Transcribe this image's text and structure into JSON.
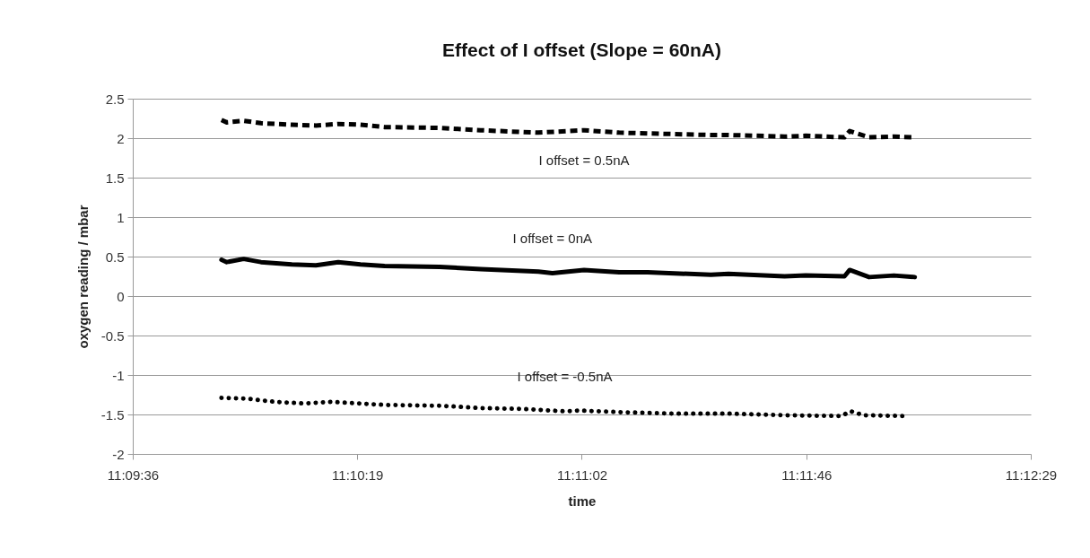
{
  "chart_data": {
    "type": "line",
    "title": "Effect of I offset (Slope = 60nA)",
    "xlabel": "time",
    "ylabel": "oxygen reading / mbar",
    "xlim": [
      11.16,
      11.208
    ],
    "xticks": [
      {
        "value": 11.16,
        "label": "11:09:36"
      },
      {
        "value": 11.172,
        "label": "11:10:19"
      },
      {
        "value": 11.184,
        "label": "11:11:02"
      },
      {
        "value": 11.196,
        "label": "11:11:46"
      },
      {
        "value": 11.208,
        "label": "11:12:29"
      }
    ],
    "ylim": [
      -2,
      2.5
    ],
    "yticks": [
      -2,
      -1.5,
      -1,
      -0.5,
      0,
      0.5,
      1,
      1.5,
      2,
      2.5
    ],
    "grid": "y",
    "legend": false,
    "series": [
      {
        "name": "I offset = 0.5nA",
        "color": "#000000",
        "line_style": "dashed",
        "x": [
          11.16474,
          11.16502,
          11.16593,
          11.16685,
          11.1685,
          11.16979,
          11.17098,
          11.17217,
          11.17346,
          11.1764,
          11.1786,
          11.18168,
          11.18412,
          11.186,
          11.18751,
          11.1909,
          11.19184,
          11.19484,
          11.19597,
          11.19804,
          11.19832,
          11.19936,
          11.20068,
          11.2018
        ],
        "values": [
          2.23,
          2.2,
          2.22,
          2.19,
          2.17,
          2.16,
          2.18,
          2.17,
          2.14,
          2.13,
          2.1,
          2.07,
          2.1,
          2.07,
          2.06,
          2.04,
          2.04,
          2.02,
          2.03,
          2.01,
          2.09,
          2.01,
          2.02,
          2.01
        ]
      },
      {
        "name": "I offset = 0nA",
        "color": "#000000",
        "line_style": "solid",
        "x": [
          11.16474,
          11.16502,
          11.16593,
          11.16685,
          11.1685,
          11.16979,
          11.17098,
          11.17217,
          11.17346,
          11.1764,
          11.1786,
          11.18168,
          11.18243,
          11.18412,
          11.186,
          11.18751,
          11.1909,
          11.19184,
          11.19484,
          11.19597,
          11.19804,
          11.19832,
          11.19936,
          11.20068,
          11.2018
        ],
        "values": [
          0.46,
          0.43,
          0.47,
          0.43,
          0.4,
          0.39,
          0.43,
          0.4,
          0.38,
          0.37,
          0.34,
          0.31,
          0.29,
          0.33,
          0.3,
          0.3,
          0.27,
          0.28,
          0.25,
          0.26,
          0.25,
          0.33,
          0.24,
          0.26,
          0.24
        ]
      },
      {
        "name": "I offset = -0.5nA",
        "color": "#000000",
        "line_style": "dotted",
        "x": [
          11.16474,
          11.16612,
          11.16759,
          11.16915,
          11.17061,
          11.17208,
          11.17355,
          11.17649,
          11.17869,
          11.18089,
          11.18309,
          11.18384,
          11.186,
          11.18901,
          11.19193,
          11.19484,
          11.19785,
          11.19838,
          11.19907,
          11.20133
        ],
        "values": [
          -1.29,
          -1.3,
          -1.34,
          -1.36,
          -1.34,
          -1.36,
          -1.38,
          -1.39,
          -1.42,
          -1.43,
          -1.46,
          -1.45,
          -1.47,
          -1.49,
          -1.49,
          -1.51,
          -1.52,
          -1.46,
          -1.51,
          -1.52
        ]
      }
    ]
  }
}
